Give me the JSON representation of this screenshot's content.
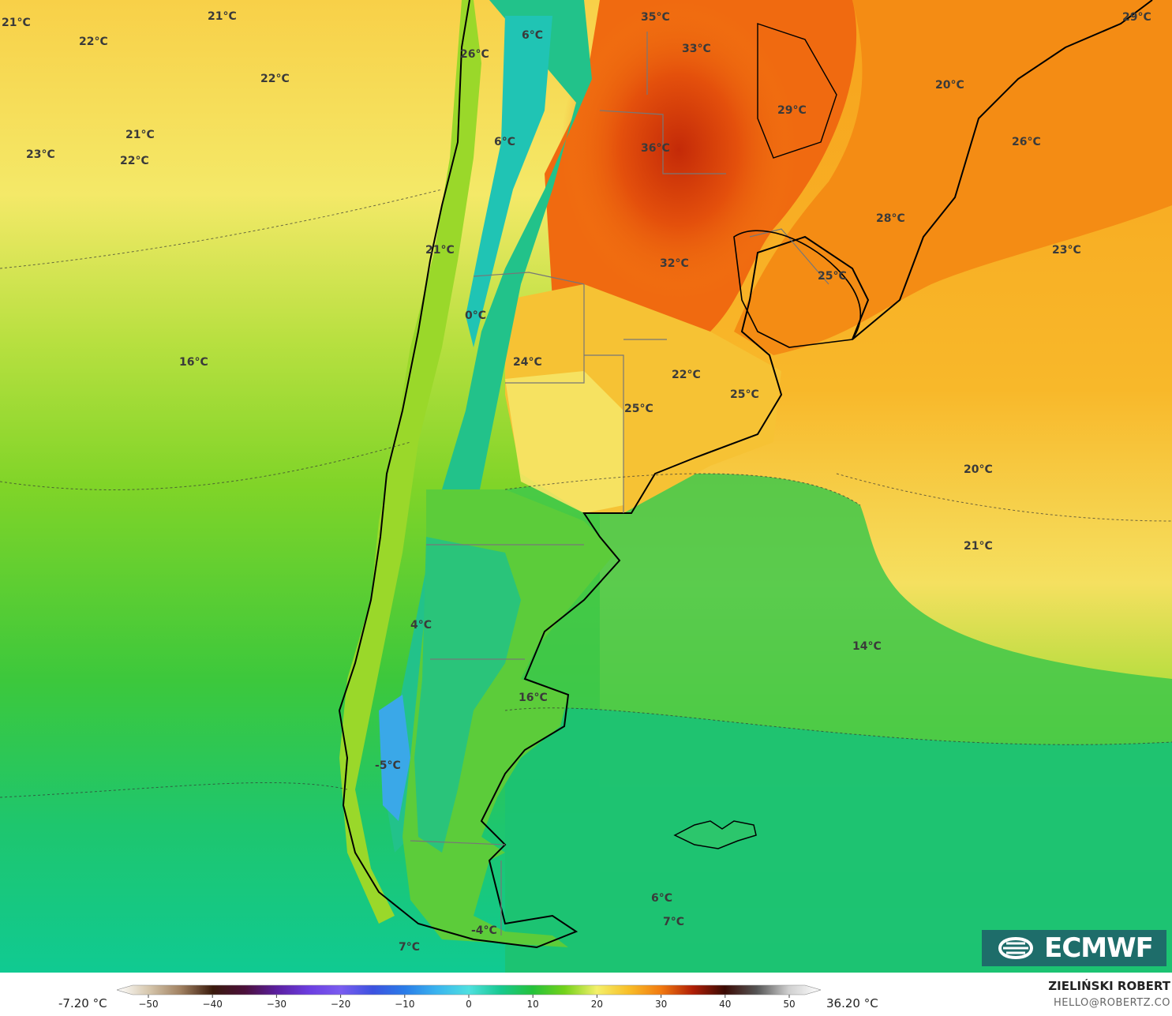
{
  "title": "",
  "scale": {
    "min_label": "-7.20 °C",
    "max_label": "36.20 °C",
    "ticks": [
      "−50",
      "−40",
      "−30",
      "−20",
      "−10",
      "0",
      "10",
      "20",
      "30",
      "40",
      "50"
    ],
    "range": [
      -55,
      55
    ],
    "colors": [
      {
        "v": -55,
        "c": "#ffffff"
      },
      {
        "v": -50,
        "c": "#d6c7ad"
      },
      {
        "v": -45,
        "c": "#a08060"
      },
      {
        "v": -40,
        "c": "#3a1a0c"
      },
      {
        "v": -35,
        "c": "#4b0f3a"
      },
      {
        "v": -30,
        "c": "#5b1fa0"
      },
      {
        "v": -25,
        "c": "#6b3de0"
      },
      {
        "v": -20,
        "c": "#7a5cf0"
      },
      {
        "v": -15,
        "c": "#3c52e0"
      },
      {
        "v": -10,
        "c": "#2a7ce8"
      },
      {
        "v": -5,
        "c": "#3ab4ef"
      },
      {
        "v": 0,
        "c": "#4fe0e0"
      },
      {
        "v": 5,
        "c": "#17c98f"
      },
      {
        "v": 10,
        "c": "#25c23a"
      },
      {
        "v": 15,
        "c": "#74d21a"
      },
      {
        "v": 20,
        "c": "#f4f06a"
      },
      {
        "v": 25,
        "c": "#f8be28"
      },
      {
        "v": 30,
        "c": "#f27a10"
      },
      {
        "v": 35,
        "c": "#b01e06"
      },
      {
        "v": 40,
        "c": "#3a0a04"
      },
      {
        "v": 45,
        "c": "#555555"
      },
      {
        "v": 50,
        "c": "#d0d0d0"
      },
      {
        "v": 55,
        "c": "#ffffff"
      }
    ]
  },
  "labels": [
    {
      "id": "l1",
      "text": "21°C"
    },
    {
      "id": "l2",
      "text": "21°C"
    },
    {
      "id": "l3",
      "text": "22°C"
    },
    {
      "id": "l4",
      "text": "22°C"
    },
    {
      "id": "l5",
      "text": "21°C"
    },
    {
      "id": "l6",
      "text": "22°C"
    },
    {
      "id": "l7",
      "text": "23°C"
    },
    {
      "id": "l8",
      "text": "26°C"
    },
    {
      "id": "l9",
      "text": "6°C"
    },
    {
      "id": "l10",
      "text": "6°C"
    },
    {
      "id": "l11",
      "text": "35°C"
    },
    {
      "id": "l12",
      "text": "33°C"
    },
    {
      "id": "l13",
      "text": "36°C"
    },
    {
      "id": "l14",
      "text": "29°C"
    },
    {
      "id": "l15",
      "text": "20°C"
    },
    {
      "id": "l16",
      "text": "29°C"
    },
    {
      "id": "l17",
      "text": "26°C"
    },
    {
      "id": "l18",
      "text": "28°C"
    },
    {
      "id": "l19",
      "text": "23°C"
    },
    {
      "id": "l20",
      "text": "21°C"
    },
    {
      "id": "l21",
      "text": "32°C"
    },
    {
      "id": "l22",
      "text": "25°C"
    },
    {
      "id": "l23",
      "text": "0°C"
    },
    {
      "id": "l24",
      "text": "16°C"
    },
    {
      "id": "l25",
      "text": "24°C"
    },
    {
      "id": "l26",
      "text": "22°C"
    },
    {
      "id": "l27",
      "text": "25°C"
    },
    {
      "id": "l28",
      "text": "25°C"
    },
    {
      "id": "l29",
      "text": "20°C"
    },
    {
      "id": "l30",
      "text": "21°C"
    },
    {
      "id": "l31",
      "text": "4°C"
    },
    {
      "id": "l32",
      "text": "14°C"
    },
    {
      "id": "l33",
      "text": "16°C"
    },
    {
      "id": "l34",
      "text": "-5°C"
    },
    {
      "id": "l35",
      "text": "6°C"
    },
    {
      "id": "l36",
      "text": "7°C"
    },
    {
      "id": "l37",
      "text": "-4°C"
    },
    {
      "id": "l38",
      "text": "7°C"
    }
  ],
  "credit": {
    "name": "ZIELIŃSKI ROBERT",
    "email": "HELLO@ROBERTZ.CO"
  },
  "logo": {
    "text": "ECMWF",
    "icon": "ecmwf-logo-icon"
  }
}
